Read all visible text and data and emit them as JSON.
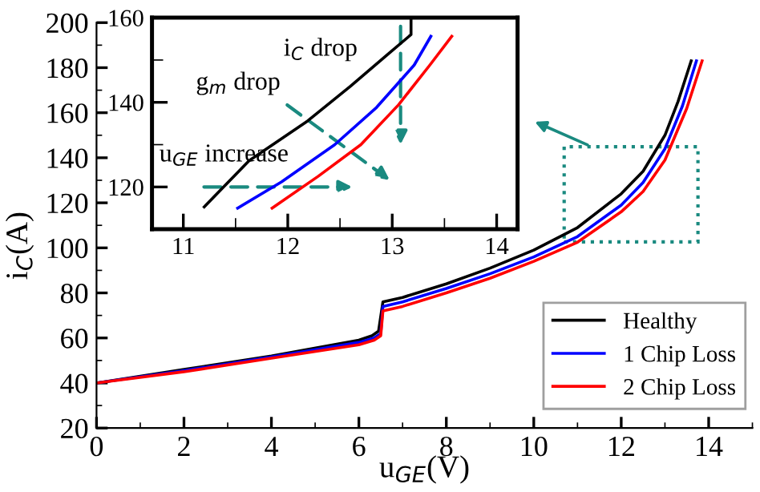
{
  "chart_data": [
    {
      "type": "line",
      "xlabel": "u$_{GE}$(V)",
      "ylabel": "i$_{C}$(A)",
      "xlim": [
        0,
        15
      ],
      "ylim": [
        20,
        200
      ],
      "xticks": [
        0,
        2,
        4,
        6,
        8,
        10,
        12,
        14
      ],
      "yticks": [
        20,
        40,
        60,
        80,
        100,
        120,
        140,
        160,
        180,
        200
      ],
      "grid": false,
      "legend": "bottom right",
      "marker": "none",
      "line_style": "solid",
      "series": [
        {
          "name": "Healthy",
          "color": "#000000",
          "x": [
            0,
            2,
            4,
            6,
            6.3,
            6.45,
            6.55,
            7,
            8,
            9,
            10,
            11,
            12,
            12.5,
            13,
            13.3,
            13.6
          ],
          "values": [
            40,
            46,
            52,
            59,
            61,
            63,
            76,
            78,
            84,
            91,
            99,
            109,
            124,
            134,
            150,
            165,
            183
          ]
        },
        {
          "name": "1 Chip Loss",
          "color": "#0000ff",
          "x": [
            0,
            2,
            4,
            6,
            6.35,
            6.5,
            6.55,
            7,
            8,
            9,
            10,
            11,
            12,
            12.5,
            13,
            13.4,
            13.72
          ],
          "values": [
            40,
            45.5,
            51.5,
            58,
            60,
            62,
            74,
            76,
            82,
            88.5,
            96,
            105,
            119,
            129,
            144,
            163,
            183
          ]
        },
        {
          "name": "2 Chip Loss",
          "color": "#ff0000",
          "x": [
            0,
            2,
            4,
            6,
            6.35,
            6.5,
            6.55,
            7,
            8,
            9,
            10,
            11,
            12,
            12.5,
            13,
            13.5,
            13.85
          ],
          "values": [
            40,
            45,
            51,
            57,
            59,
            61,
            72,
            74,
            80,
            86.5,
            94,
            102.5,
            116,
            125,
            139,
            162,
            183
          ]
        }
      ]
    },
    {
      "type": "line",
      "xlim": [
        10.7,
        14.2
      ],
      "ylim": [
        110,
        160
      ],
      "xticks": [
        11,
        12,
        13,
        14
      ],
      "yticks": [
        120,
        140,
        160
      ],
      "grid": false,
      "marker": "none",
      "line_style": "solid",
      "annotations": [
        "i$_{C}$ drop",
        "g$_{m}$ drop",
        "u$_{GE}$ increase"
      ],
      "series": [
        {
          "color": "#000000",
          "x": [
            11.2,
            11.63,
            12.19,
            12.6,
            12.95,
            13.18,
            13.18
          ],
          "values": [
            115.3,
            126.2,
            135.6,
            143.8,
            151.2,
            156,
            160
          ]
        },
        {
          "color": "#0000ff",
          "x": [
            11.52,
            11.94,
            12.45,
            12.85,
            13.21,
            13.37
          ],
          "values": [
            115,
            121.2,
            130,
            138.8,
            148.8,
            155.6
          ]
        },
        {
          "color": "#ff0000",
          "x": [
            11.85,
            12.29,
            12.7,
            13.06,
            13.36,
            13.57
          ],
          "values": [
            115,
            122.5,
            130,
            139.4,
            148.8,
            155.6
          ]
        }
      ]
    }
  ]
}
